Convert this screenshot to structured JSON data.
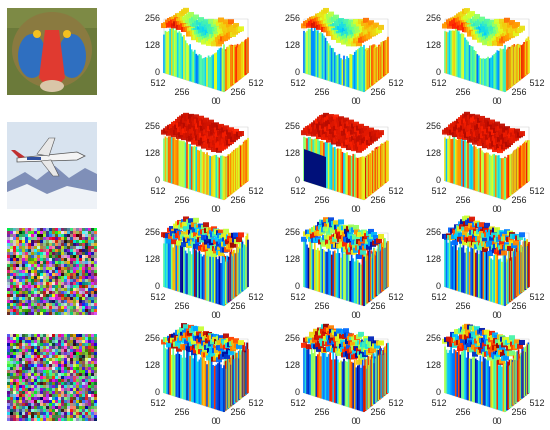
{
  "rows": [
    {
      "image": "baboon-image",
      "scheme": "smooth-warm"
    },
    {
      "image": "f16-jet-image",
      "scheme": "flat-red"
    },
    {
      "image": "encrypted-noise-image-1",
      "scheme": "noise"
    },
    {
      "image": "encrypted-noise-image-2",
      "scheme": "noise"
    }
  ],
  "tick_labels": {
    "z": [
      "256",
      "128",
      "0"
    ],
    "y": [
      "512",
      "256",
      "0"
    ],
    "x": [
      "0",
      "256",
      "512"
    ]
  },
  "colormap": [
    "#00008f",
    "#0060ff",
    "#00d0ff",
    "#60ff90",
    "#e0ff20",
    "#ffa000",
    "#ff2000",
    "#900000"
  ]
}
